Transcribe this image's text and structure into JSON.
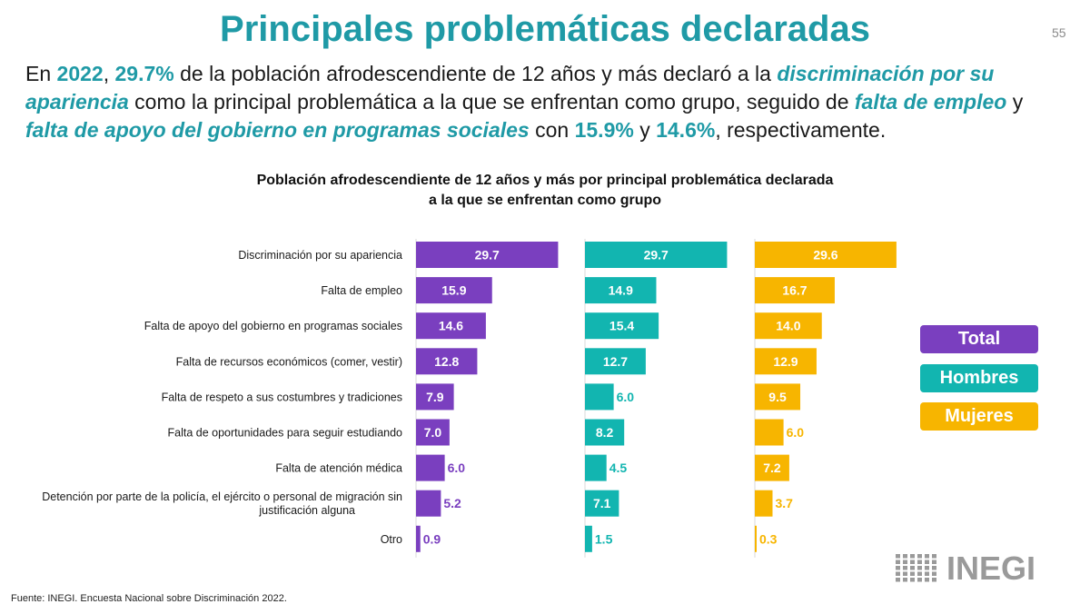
{
  "slide": {
    "title": "Principales problemáticas declaradas",
    "page_number": "55",
    "intro": {
      "p1": "En ",
      "year": "2022",
      "p2": ", ",
      "pct1": "29.7%",
      "p3": " de la población afrodescendiente de 12 años y más declaró a la ",
      "item1": "discriminación por su apariencia",
      "p4": " como la principal problemática a la que se enfrentan como grupo, seguido de ",
      "item2": "falta de empleo",
      "p5": " y ",
      "item3": "falta de apoyo del gobierno en programas sociales",
      "p6": " con ",
      "pct2": "15.9%",
      "p7": " y ",
      "pct3": "14.6%",
      "p8": ", respectivamente."
    },
    "source": "Fuente: INEGI. Encuesta Nacional sobre Discriminación 2022.",
    "logo_text": "INEGI"
  },
  "chart_data": {
    "type": "bar",
    "orientation": "horizontal",
    "title_line1": "Población afrodescendiente de 12 años y más por principal problemática declarada",
    "title_line2": "a la que se enfrentan como grupo",
    "categories": [
      "Discriminación por su apariencia",
      "Falta de empleo",
      "Falta de apoyo del gobierno en programas sociales",
      "Falta de recursos económicos (comer, vestir)",
      "Falta de respeto a sus costumbres y tradiciones",
      "Falta de oportunidades para seguir estudiando",
      "Falta de atención médica",
      "Detención por parte de la policía, el ejército o personal de migración sin justificación alguna",
      "Otro"
    ],
    "category_lines": [
      [
        "Discriminación por su apariencia"
      ],
      [
        "Falta de empleo"
      ],
      [
        "Falta de apoyo del gobierno en programas sociales"
      ],
      [
        "Falta de recursos económicos (comer, vestir)"
      ],
      [
        "Falta de respeto a sus costumbres y tradiciones"
      ],
      [
        "Falta de oportunidades para seguir estudiando"
      ],
      [
        "Falta de atención médica"
      ],
      [
        "Detención por parte de la policía, el ejército o personal de migración sin",
        "justificación alguna"
      ],
      [
        "Otro"
      ]
    ],
    "series": [
      {
        "name": "Total",
        "color": "#7a3fbf",
        "values": [
          29.7,
          15.9,
          14.6,
          12.8,
          7.9,
          7.0,
          6.0,
          5.2,
          0.9
        ]
      },
      {
        "name": "Hombres",
        "color": "#12b5b0",
        "values": [
          29.7,
          14.9,
          15.4,
          12.7,
          6.0,
          8.2,
          4.5,
          7.1,
          1.5
        ]
      },
      {
        "name": "Mujeres",
        "color": "#f7b500",
        "values": [
          29.6,
          16.7,
          14.0,
          12.9,
          9.5,
          6.0,
          7.2,
          3.7,
          0.3
        ]
      }
    ],
    "xlim": [
      0,
      30
    ],
    "value_format": "0.0",
    "grid": false,
    "legend_position": "right"
  }
}
